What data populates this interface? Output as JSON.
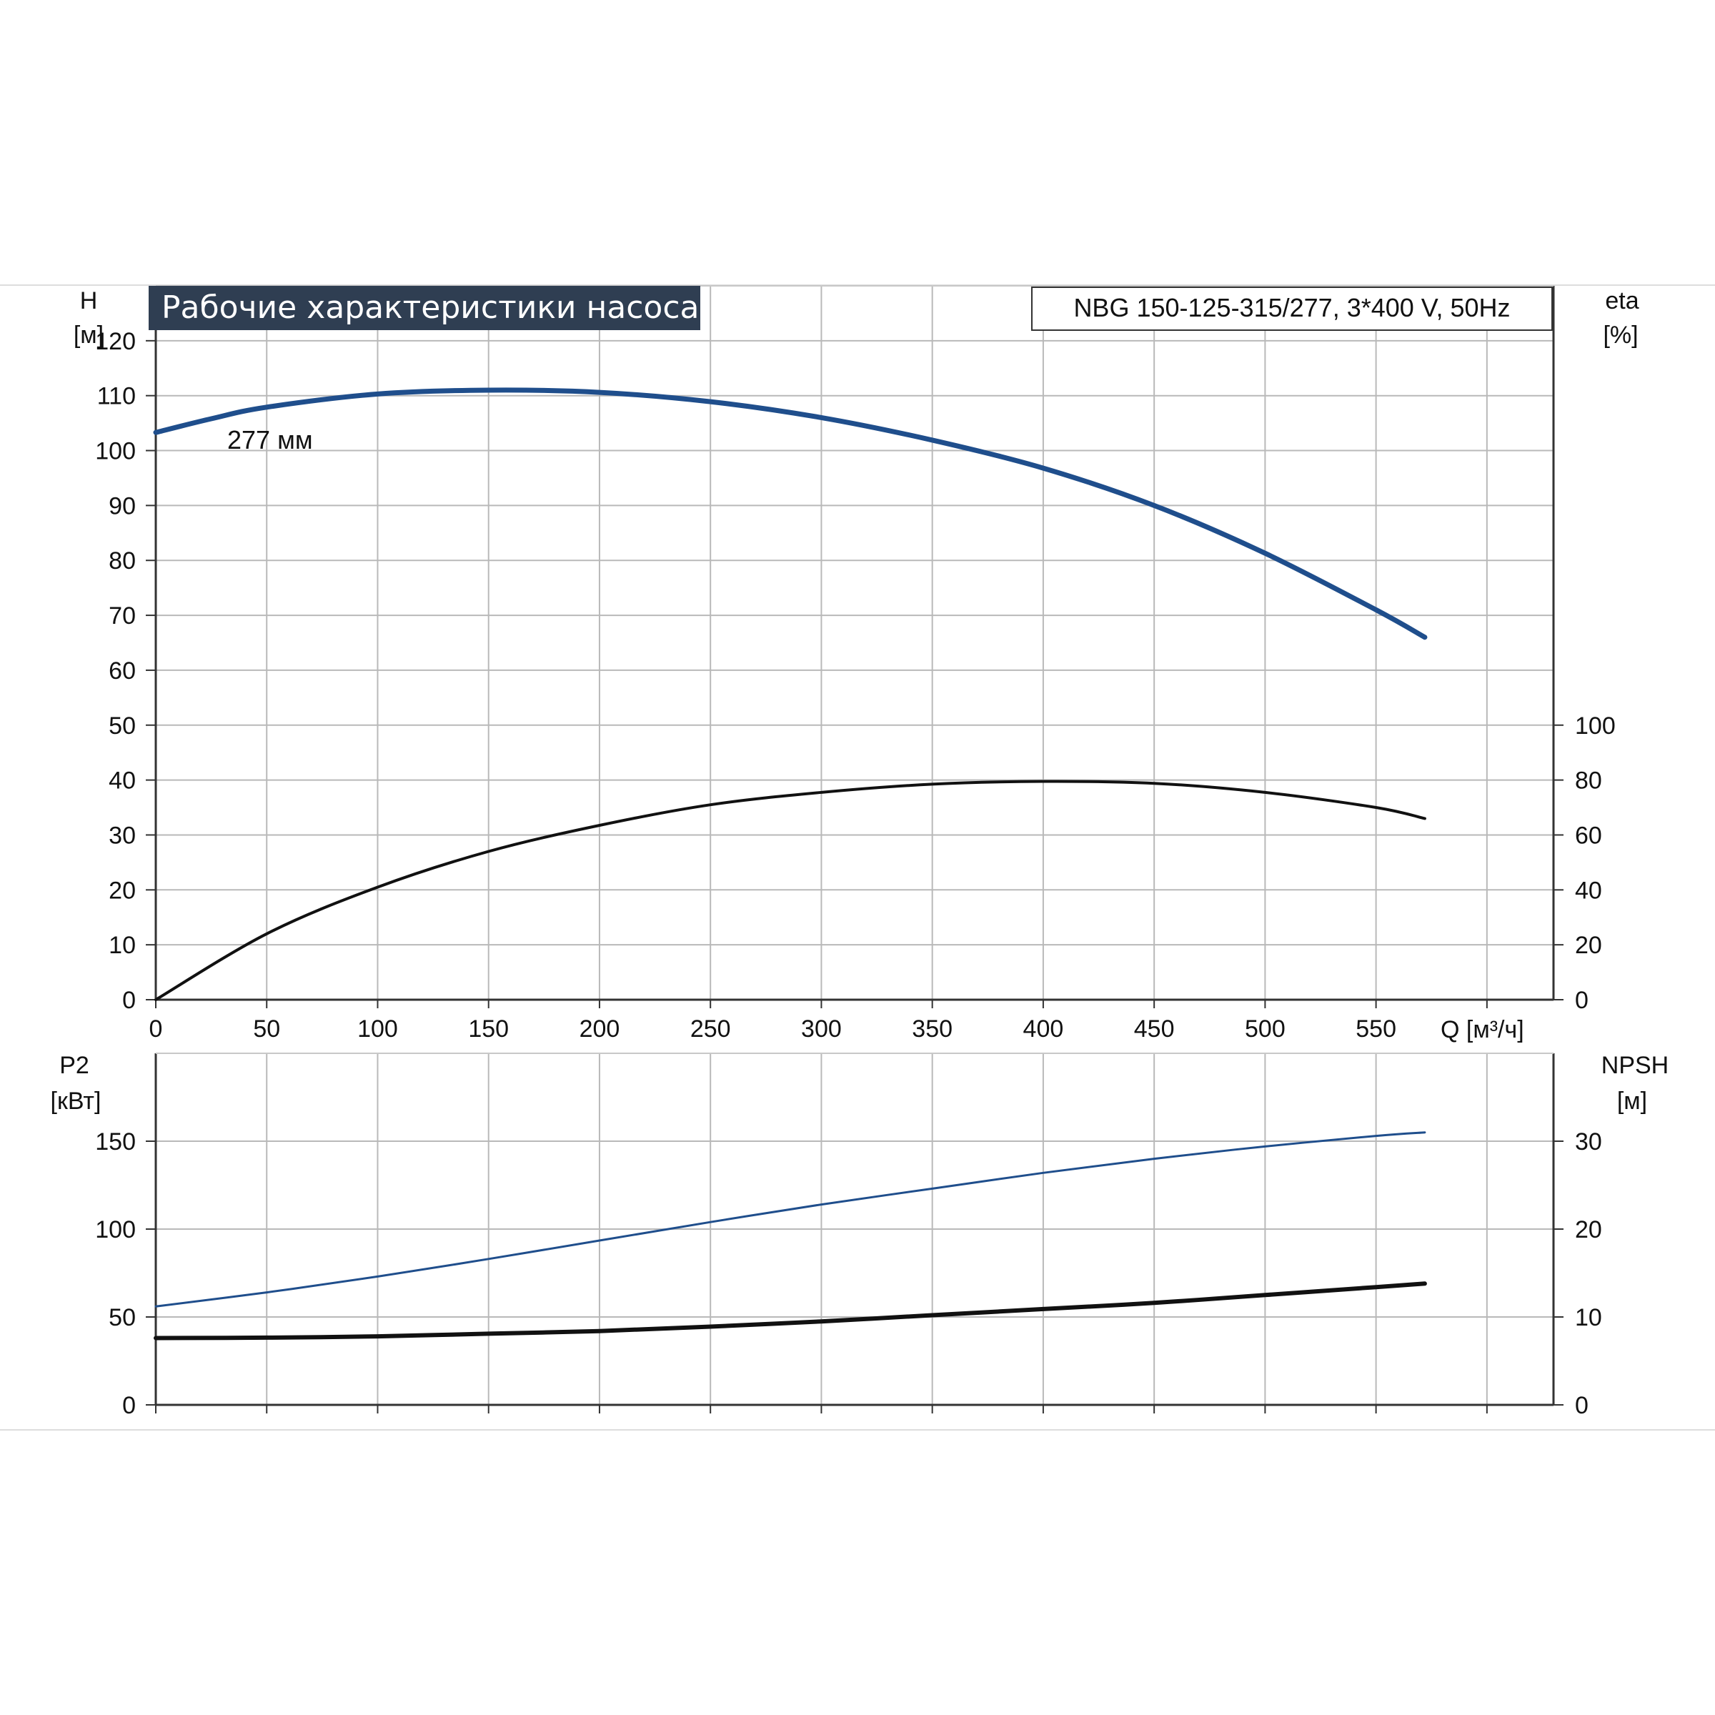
{
  "chart_data": [
    {
      "panel": "head-efficiency",
      "type": "line",
      "title": "Рабочие характеристики насоса",
      "model_label": "NBG 150-125-315/277, 3*400 V, 50Hz",
      "xlabel": "Q [м³/ч]",
      "xlim": [
        0,
        630
      ],
      "x_ticks": [
        0,
        50,
        100,
        150,
        200,
        250,
        300,
        350,
        400,
        450,
        500,
        550
      ],
      "y_left": {
        "label_line1": "H",
        "label_line2": "[м]",
        "lim": [
          0,
          130
        ],
        "ticks": [
          0,
          10,
          20,
          30,
          40,
          50,
          60,
          70,
          80,
          90,
          100,
          110,
          120
        ]
      },
      "y_right": {
        "label_line1": "eta",
        "label_line2": "[%]",
        "lim": [
          0,
          260
        ],
        "ticks": [
          0,
          20,
          40,
          60,
          80,
          100
        ]
      },
      "grid": true,
      "series": [
        {
          "axis": "left",
          "color": "#1f4e8c",
          "annotation": "277 мм",
          "x": [
            0,
            25,
            50,
            100,
            150,
            200,
            250,
            300,
            350,
            400,
            450,
            500,
            550,
            572
          ],
          "y": [
            103.3,
            105.8,
            107.9,
            110.3,
            111.0,
            110.6,
            108.9,
            106.0,
            101.9,
            96.8,
            90.0,
            81.3,
            71.0,
            66.0
          ]
        },
        {
          "axis": "right",
          "color": "#111111",
          "x": [
            0,
            50,
            100,
            150,
            200,
            250,
            300,
            350,
            400,
            450,
            500,
            550,
            572
          ],
          "y": [
            0,
            24,
            41,
            54,
            63.5,
            71,
            75.5,
            78.5,
            79.5,
            78.8,
            75.5,
            70,
            66
          ]
        }
      ]
    },
    {
      "panel": "power-npsh",
      "type": "line",
      "xlim": [
        0,
        630
      ],
      "y_left": {
        "label_line1": "P2",
        "label_line2": "[кВт]",
        "lim": [
          0,
          200
        ],
        "ticks": [
          0,
          50,
          100,
          150
        ]
      },
      "y_right": {
        "label_line1": "NPSH",
        "label_line2": "[м]",
        "lim": [
          0,
          40
        ],
        "ticks": [
          0,
          10,
          20,
          30
        ]
      },
      "grid": true,
      "series": [
        {
          "axis": "left",
          "color": "#1f4e8c",
          "x": [
            0,
            50,
            100,
            150,
            200,
            250,
            300,
            350,
            400,
            450,
            500,
            550,
            572
          ],
          "y": [
            56,
            64,
            73,
            83,
            93.5,
            104,
            114,
            123,
            132,
            140,
            147,
            153,
            155
          ]
        },
        {
          "axis": "right",
          "color": "#111111",
          "x": [
            0,
            50,
            100,
            150,
            200,
            250,
            300,
            350,
            400,
            450,
            500,
            550,
            572
          ],
          "y": [
            7.6,
            7.65,
            7.8,
            8.1,
            8.4,
            8.9,
            9.5,
            10.2,
            10.9,
            11.6,
            12.5,
            13.4,
            13.8
          ]
        }
      ]
    }
  ]
}
